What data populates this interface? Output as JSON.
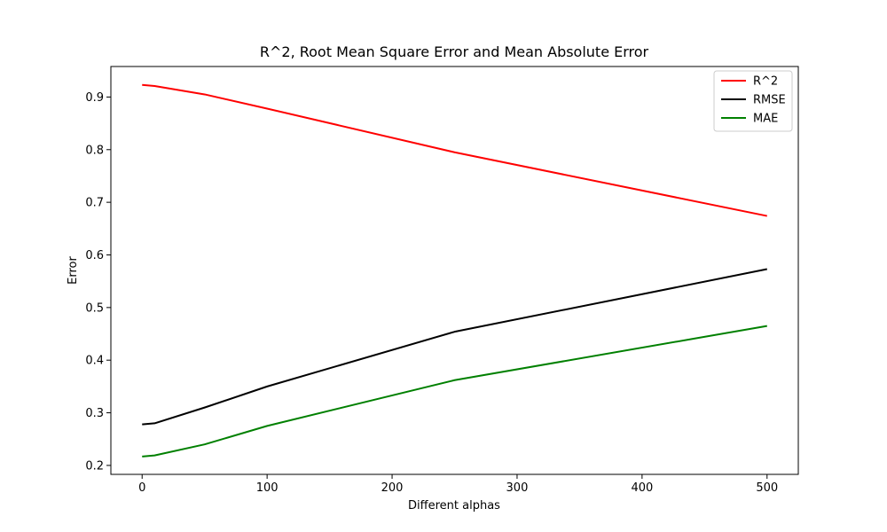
{
  "chart_data": {
    "type": "line",
    "title": "R^2, Root Mean Square Error and Mean Absolute Error",
    "xlabel": "Different alphas",
    "ylabel": "Error",
    "xlim": [
      -25,
      525
    ],
    "ylim": [
      0.183,
      0.958
    ],
    "xticks": [
      0,
      100,
      200,
      300,
      400,
      500
    ],
    "yticks": [
      0.2,
      0.3,
      0.4,
      0.5,
      0.6,
      0.7,
      0.8,
      0.9
    ],
    "legend_position": "top-right",
    "grid": false,
    "x": [
      0,
      10,
      50,
      100,
      250,
      500
    ],
    "series": [
      {
        "name": "R^2",
        "color": "#ff0000",
        "values": [
          0.923,
          0.921,
          0.905,
          0.878,
          0.795,
          0.674
        ]
      },
      {
        "name": "RMSE",
        "color": "#000000",
        "values": [
          0.278,
          0.28,
          0.31,
          0.35,
          0.454,
          0.573
        ]
      },
      {
        "name": "MAE",
        "color": "#008000",
        "values": [
          0.217,
          0.219,
          0.24,
          0.275,
          0.362,
          0.465
        ]
      }
    ]
  }
}
